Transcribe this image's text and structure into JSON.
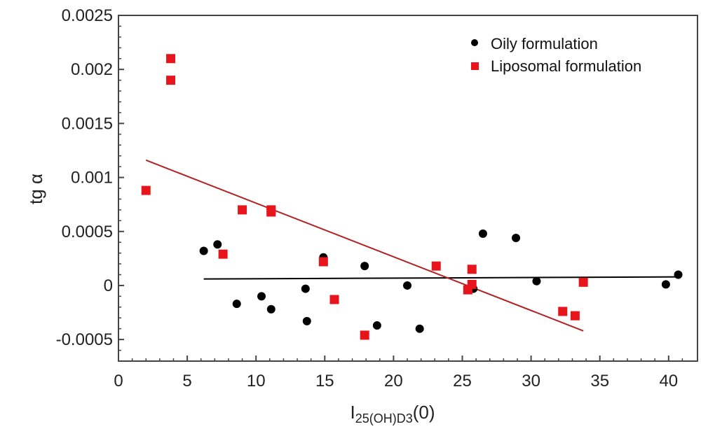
{
  "chart_data": {
    "type": "scatter",
    "title": "",
    "xlabel": "I",
    "xlabel_subscript": "25(OH)D3",
    "xlabel_suffix": "(0)",
    "ylabel": "tg α",
    "xlim": [
      0,
      42.1
    ],
    "ylim": [
      -0.0007,
      0.0025
    ],
    "xticks": [
      "0",
      "5",
      "10",
      "15",
      "20",
      "25",
      "30",
      "35",
      "40"
    ],
    "yticks": [
      "-0.0005",
      "0",
      "0.0005",
      "0.001",
      "0.0015",
      "0.002",
      "0.0025"
    ],
    "grid": false,
    "legend_position": "top-right",
    "series": [
      {
        "name": "Oily formulation",
        "marker": "circle",
        "color": "#000000",
        "points": [
          [
            6.2,
            0.00032
          ],
          [
            7.2,
            0.00038
          ],
          [
            8.6,
            -0.00017
          ],
          [
            10.4,
            -0.0001
          ],
          [
            11.1,
            -0.00022
          ],
          [
            13.6,
            -3e-05
          ],
          [
            13.7,
            -0.00033
          ],
          [
            14.9,
            0.00026
          ],
          [
            17.9,
            0.00018
          ],
          [
            18.8,
            -0.00037
          ],
          [
            21.0,
            0.0
          ],
          [
            21.9,
            -0.0004
          ],
          [
            25.8,
            -3e-05
          ],
          [
            26.5,
            0.00048
          ],
          [
            28.9,
            0.00044
          ],
          [
            30.4,
            4e-05
          ],
          [
            39.8,
            1e-05
          ],
          [
            40.7,
            0.0001
          ]
        ],
        "fit": [
          [
            6.2,
            6e-05
          ],
          [
            40.7,
            8e-05
          ]
        ],
        "fit_color": "#000000"
      },
      {
        "name": "Liposomal formulation",
        "marker": "square",
        "color": "#e8141b",
        "points": [
          [
            2.0,
            0.00088
          ],
          [
            3.8,
            0.0021
          ],
          [
            3.8,
            0.0019
          ],
          [
            7.6,
            0.00029
          ],
          [
            9.0,
            0.0007
          ],
          [
            11.1,
            0.00068
          ],
          [
            11.1,
            0.0007
          ],
          [
            14.9,
            0.00022
          ],
          [
            15.7,
            -0.00013
          ],
          [
            17.9,
            -0.00046
          ],
          [
            23.1,
            0.00018
          ],
          [
            25.4,
            -4e-05
          ],
          [
            25.7,
            0.00015
          ],
          [
            25.7,
            1e-05
          ],
          [
            32.3,
            -0.00024
          ],
          [
            33.2,
            -0.00028
          ],
          [
            33.8,
            3e-05
          ]
        ],
        "fit": [
          [
            2.0,
            0.00116
          ],
          [
            33.8,
            -0.00042
          ]
        ],
        "fit_color": "#b22222"
      }
    ]
  }
}
